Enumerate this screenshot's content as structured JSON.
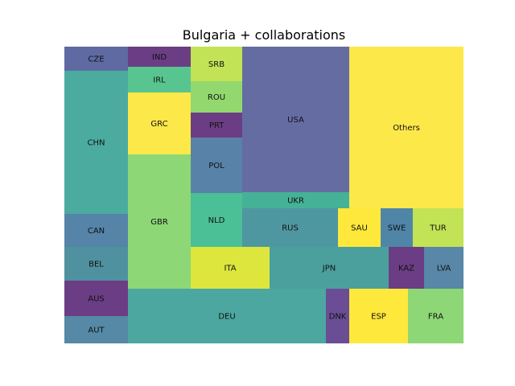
{
  "chart_data": {
    "type": "treemap",
    "title": "Bulgaria + collaborations",
    "xlabel": "",
    "ylabel": "",
    "axes_visible": false,
    "grid": false,
    "legend": "none",
    "total": 100,
    "cells": [
      {
        "label": "CZE",
        "value": 0.78,
        "color": "#5f6aa2"
      },
      {
        "label": "CHN",
        "value": 4.39,
        "color": "#4bab9f"
      },
      {
        "label": "CAN",
        "value": 1.03,
        "color": "#5584a8"
      },
      {
        "label": "BEL",
        "value": 1.03,
        "color": "#50919f"
      },
      {
        "label": "AUS",
        "value": 1.09,
        "color": "#6b3d84"
      },
      {
        "label": "AUT",
        "value": 0.84,
        "color": "#5589a5"
      },
      {
        "label": "IND",
        "value": 0.51,
        "color": "#6b3d84"
      },
      {
        "label": "IRL",
        "value": 0.73,
        "color": "#58c591"
      },
      {
        "label": "GRC",
        "value": 1.76,
        "color": "#fde84a"
      },
      {
        "label": "GBR",
        "value": 3.84,
        "color": "#8dd776"
      },
      {
        "label": "SRB",
        "value": 1.04,
        "color": "#c2e355"
      },
      {
        "label": "ROU",
        "value": 0.92,
        "color": "#92d86f"
      },
      {
        "label": "PRT",
        "value": 0.72,
        "color": "#6b3d84"
      },
      {
        "label": "POL",
        "value": 1.64,
        "color": "#5882a7"
      },
      {
        "label": "NLD",
        "value": 1.56,
        "color": "#4bbf95"
      },
      {
        "label": "USA",
        "value": 6.74,
        "color": "#646ca2"
      },
      {
        "label": "UKR",
        "value": 0.7,
        "color": "#45b297"
      },
      {
        "label": "Others",
        "value": 7.21,
        "color": "#fde84a"
      },
      {
        "label": "RUS",
        "value": 2.2,
        "color": "#4e97a1"
      },
      {
        "label": "SAU",
        "value": 0.97,
        "color": "#fde83b"
      },
      {
        "label": "SWE",
        "value": 0.73,
        "color": "#4f86a8"
      },
      {
        "label": "TUR",
        "value": 1.17,
        "color": "#c2e355"
      },
      {
        "label": "ITA",
        "value": 1.79,
        "color": "#dde63d"
      },
      {
        "label": "JPN",
        "value": 2.71,
        "color": "#4ba09e"
      },
      {
        "label": "KAZ",
        "value": 0.8,
        "color": "#6b3d84"
      },
      {
        "label": "LVA",
        "value": 0.9,
        "color": "#5887a7"
      },
      {
        "label": "DEU",
        "value": 4.92,
        "color": "#4ba7a0"
      },
      {
        "label": "DNK",
        "value": 0.58,
        "color": "#6a4d95"
      },
      {
        "label": "ESP",
        "value": 1.48,
        "color": "#fde83b"
      },
      {
        "label": "FRA",
        "value": 1.4,
        "color": "#8dd776"
      }
    ]
  }
}
